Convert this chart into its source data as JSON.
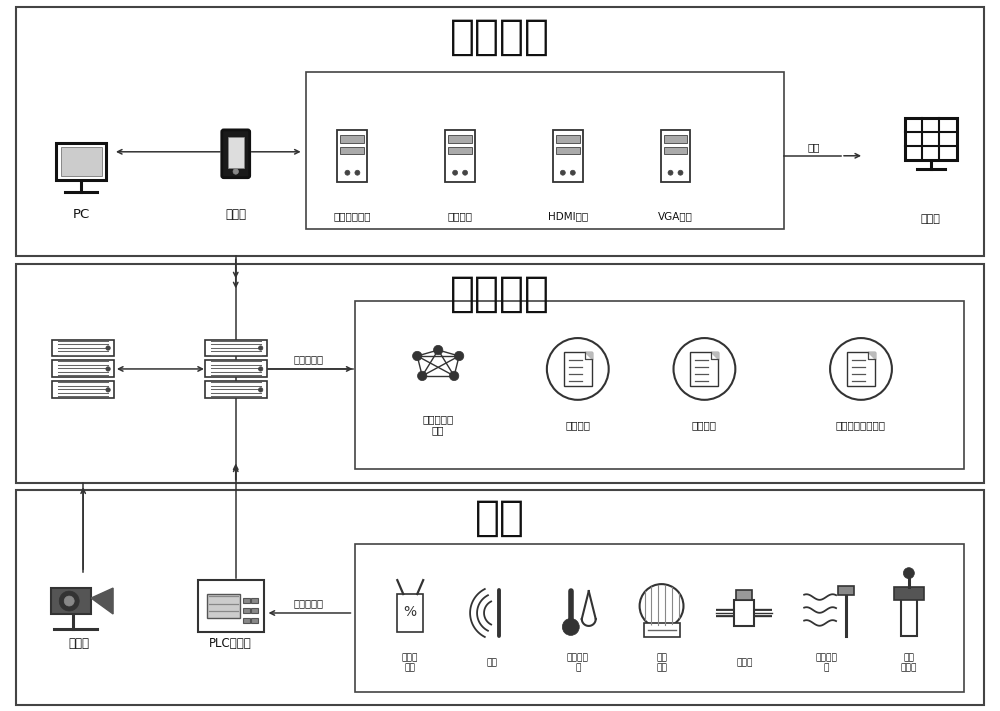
{
  "title_section1": "操作展示",
  "title_section2": "服务器端",
  "title_section3": "前端",
  "bg_color": "#ffffff",
  "section1_items_inner": [
    "多功能处理器",
    "视频矩阵",
    "HDMI矩阵",
    "VGA矩阵"
  ],
  "section1_right": "大屏端",
  "section2_items": [
    "大数据展示\n中心",
    "生产平台",
    "商业平台",
    "园区管理服务平台"
  ],
  "section3_items": [
    "空气温\n湿度",
    "光照",
    "土壤温湿\n度",
    "地源\n热泵",
    "电磁阀",
    "水位传感\n器",
    "水温\n传感器"
  ],
  "label_zhanshi": "展示",
  "label_guanli": "管理与应用",
  "label_caiji": "采集与控制",
  "pc_label": "PC",
  "mobile_label": "移动端",
  "camera_label": "摄像头",
  "plc_label": "PLC控制器",
  "fig_w": 10.0,
  "fig_h": 7.11
}
